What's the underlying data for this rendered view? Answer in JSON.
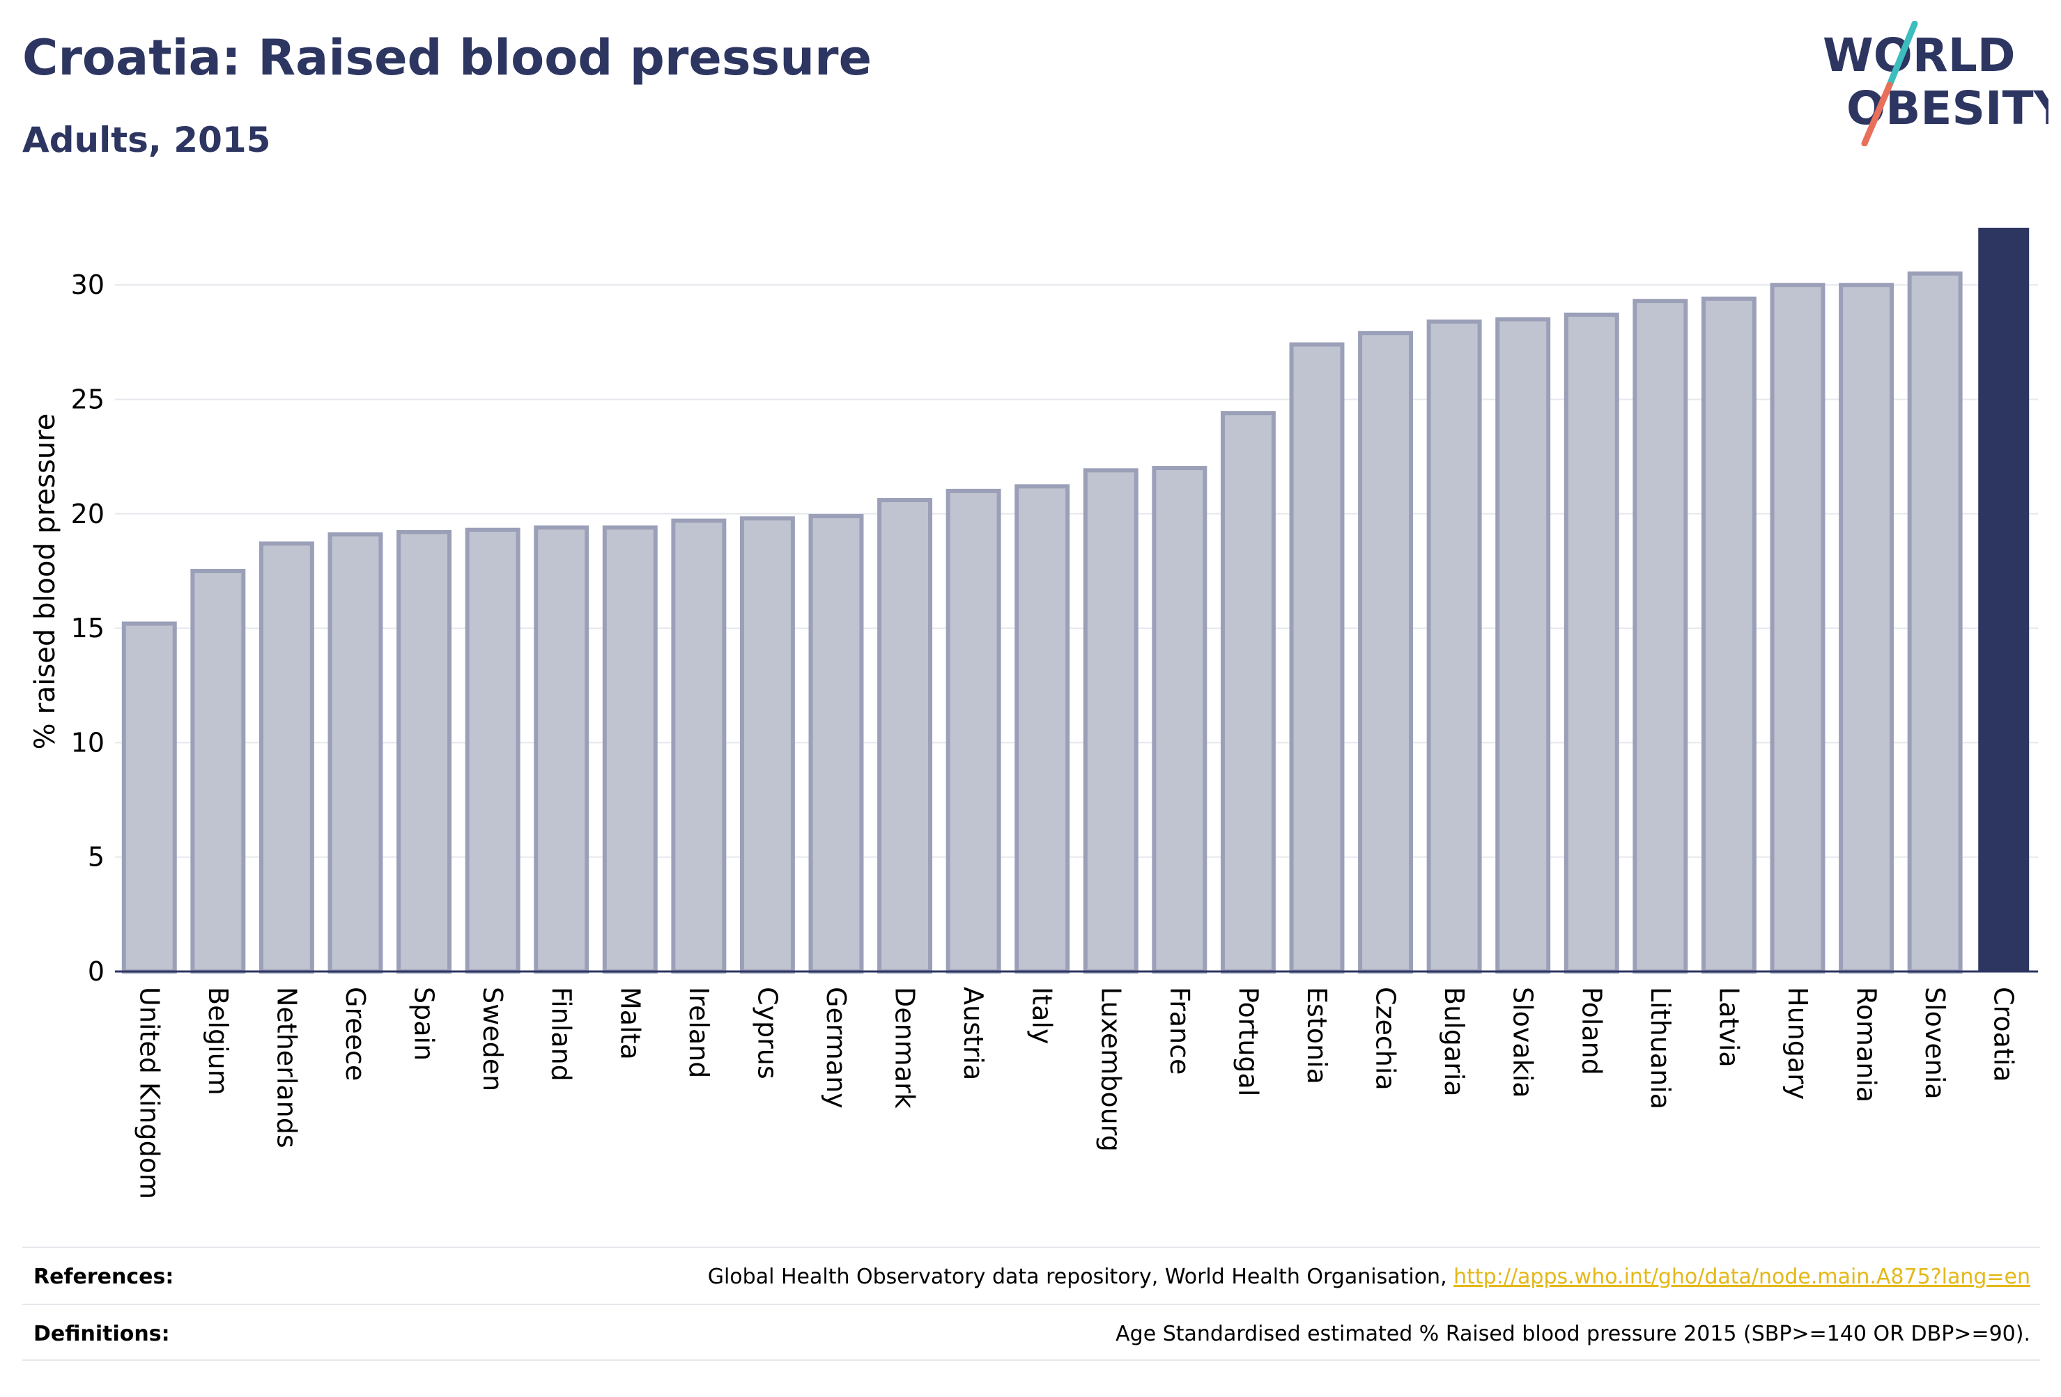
{
  "header": {
    "title": "Croatia: Raised blood pressure",
    "subtitle": "Adults, 2015"
  },
  "logo": {
    "line1": "WORLD",
    "line2": "OBESITY",
    "colors": {
      "text": "#2d3561",
      "slash_top": "#3dbdbd",
      "slash_bottom": "#e8705a"
    }
  },
  "chart_data": {
    "type": "bar",
    "title": "Croatia: Raised blood pressure",
    "subtitle": "Adults, 2015",
    "xlabel": "",
    "ylabel": "% raised blood pressure",
    "ylim": [
      0,
      32.5
    ],
    "yticks": [
      0,
      5,
      10,
      15,
      20,
      25,
      30
    ],
    "grid": true,
    "categories": [
      "United Kingdom",
      "Belgium",
      "Netherlands",
      "Greece",
      "Spain",
      "Sweden",
      "Finland",
      "Malta",
      "Ireland",
      "Cyprus",
      "Germany",
      "Denmark",
      "Austria",
      "Italy",
      "Luxembourg",
      "France",
      "Portugal",
      "Estonia",
      "Czechia",
      "Bulgaria",
      "Slovakia",
      "Poland",
      "Lithuania",
      "Latvia",
      "Hungary",
      "Romania",
      "Slovenia",
      "Croatia"
    ],
    "values": [
      15.2,
      17.5,
      18.7,
      19.1,
      19.2,
      19.3,
      19.4,
      19.4,
      19.7,
      19.8,
      19.9,
      20.6,
      21.0,
      21.2,
      21.9,
      22.0,
      24.4,
      27.4,
      27.9,
      28.4,
      28.5,
      28.7,
      29.3,
      29.4,
      30.0,
      30.0,
      30.5,
      32.5
    ],
    "highlight": "Croatia",
    "colors": {
      "bar": "#c0c3d0",
      "bar_border": "#9ba0b8",
      "highlight": "#2d3561",
      "grid": "#e6e8ee",
      "axis": "#2d3561"
    }
  },
  "footer": {
    "references_label": "References:",
    "references_text": "Global Health Observatory data repository, World Health Organisation, ",
    "references_link": "http://apps.who.int/gho/data/node.main.A875?lang=en",
    "definitions_label": "Definitions:",
    "definitions_text": "Age Standardised estimated % Raised blood pressure 2015 (SBP>=140 OR DBP>=90)."
  }
}
